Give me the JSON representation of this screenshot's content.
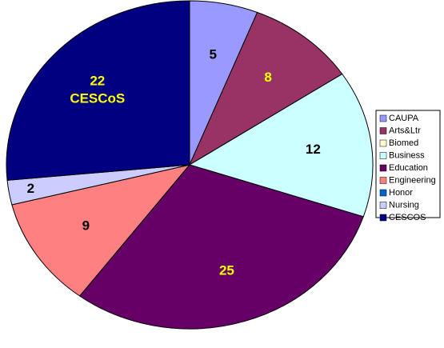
{
  "chart_data": {
    "type": "pie",
    "categories": [
      "CAUPA",
      "Arts&Ltr",
      "Biomed",
      "Business",
      "Education",
      "Engineering",
      "Honor",
      "Nursing",
      "CESCOS"
    ],
    "values": [
      5,
      8,
      0,
      12,
      25,
      9,
      0,
      2,
      22
    ],
    "colors": [
      "#9999ff",
      "#993366",
      "#ffffcc",
      "#ccffff",
      "#660066",
      "#ff8080",
      "#0066cc",
      "#ccccff",
      "#000080"
    ],
    "label_colors": [
      "#000000",
      "#ffff00",
      "#000000",
      "#000000",
      "#ffff00",
      "#000000",
      "#000000",
      "#000000",
      "#ffff00"
    ],
    "annotation": "CESCoS",
    "legend": "right"
  }
}
